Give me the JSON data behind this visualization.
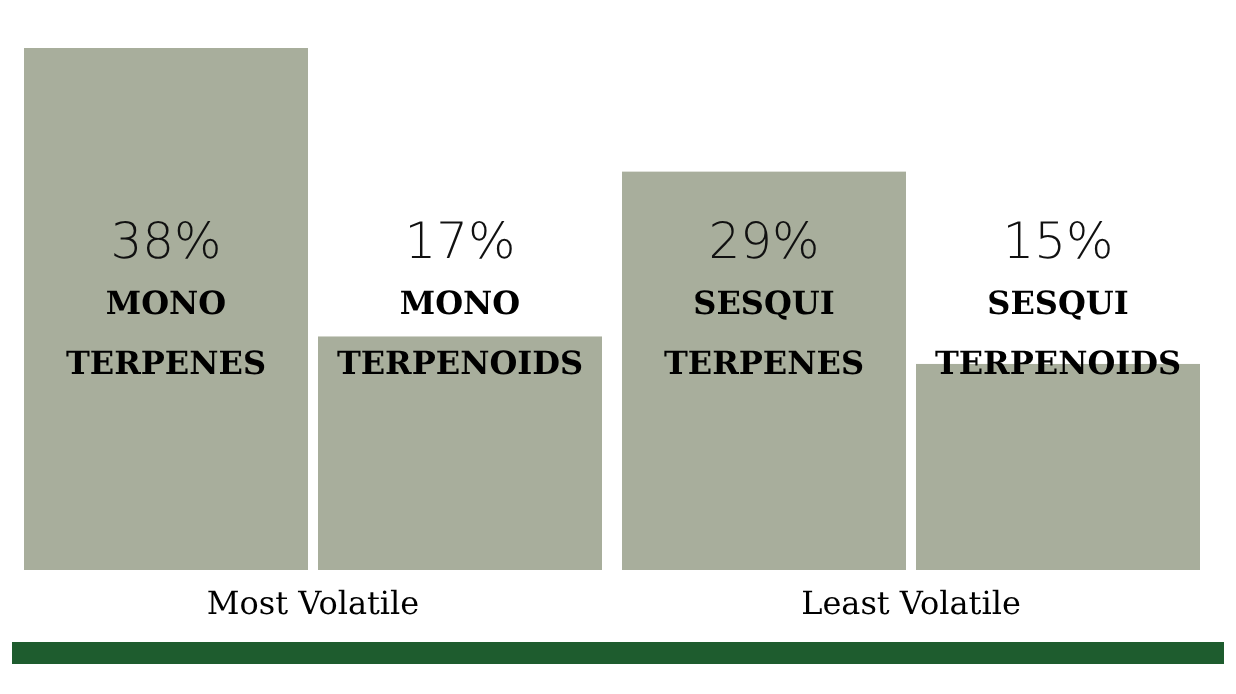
{
  "chart_data": {
    "type": "bar",
    "categories": [
      "MONO TERPENES",
      "MONO TERPENOIDS",
      "SESQUI TERPENES",
      "SESQUI TERPENOIDS"
    ],
    "values": [
      38,
      17,
      29,
      15
    ],
    "value_labels": [
      "38%",
      "17%",
      "29%",
      "15%"
    ],
    "color": "#a8ae9c",
    "annotations": [
      "Most Volatile",
      "Least Volatile"
    ]
  }
}
